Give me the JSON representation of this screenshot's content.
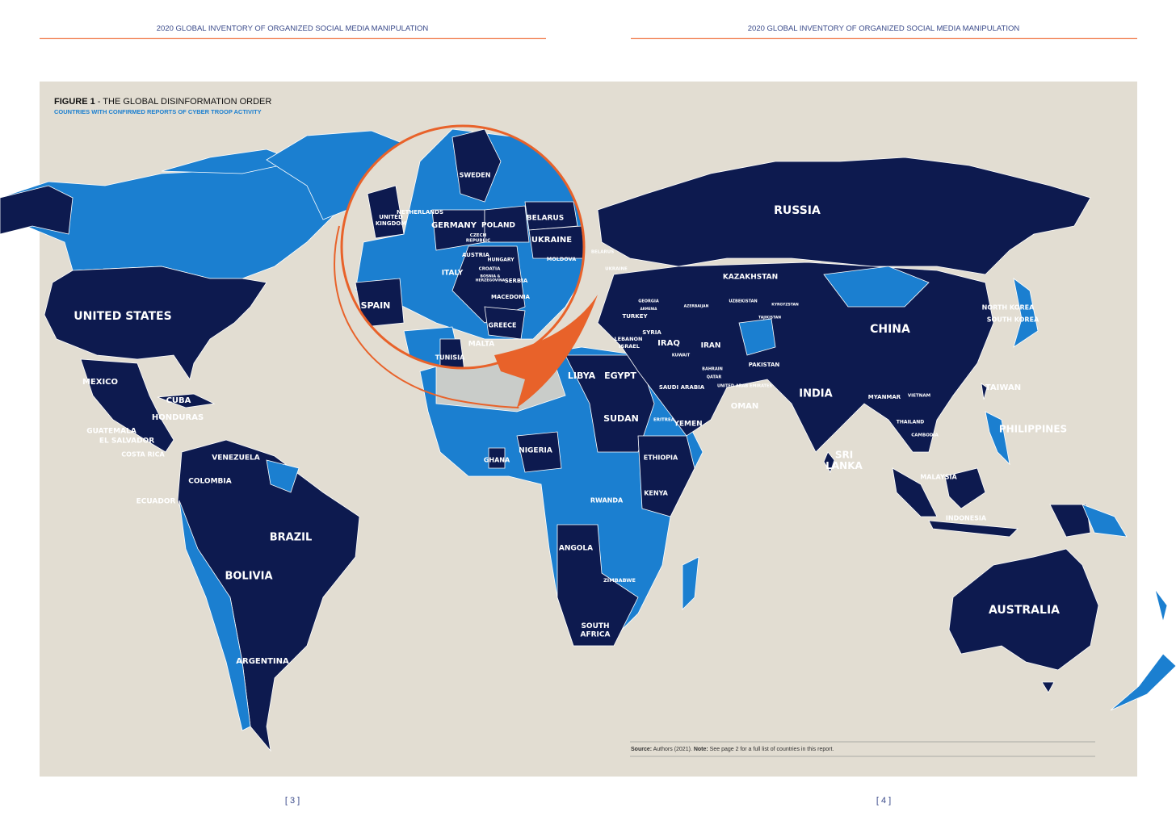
{
  "header": {
    "left": "2020 GLOBAL INVENTORY OF ORGANIZED SOCIAL MEDIA MANIPULATION",
    "right": "2020 GLOBAL INVENTORY OF ORGANIZED SOCIAL MEDIA MANIPULATION"
  },
  "figure": {
    "title_bold": "FIGURE 1",
    "title_rest": " - THE GLOBAL DISINFORMATION ORDER",
    "subtitle": "COUNTRIES WITH CONFIRMED REPORTS OF CYBER TROOP ACTIVITY"
  },
  "labels": [
    "RUSSIA",
    "UNITED STATES",
    "CHINA",
    "KAZAKHSTAN",
    "INDIA",
    "AUSTRALIA",
    "BRAZIL",
    "BOLIVIA",
    "ARGENTINA",
    "MEXICO",
    "CUBA",
    "HONDURAS",
    "GUATEMALA",
    "EL SALVADOR",
    "COSTA RICA",
    "VENEZUELA",
    "COLOMBIA",
    "ECUADOR",
    "SWEDEN",
    [
      "UNITED",
      "KINGDOM"
    ],
    "NETHERLANDS",
    "GERMANY",
    "POLAND",
    "BELARUS",
    "UKRAINE",
    [
      "CZECH",
      "REPUBLIC"
    ],
    "AUSTRIA",
    "HUNGARY",
    "MOLDOVA",
    "CROATIA",
    "ITALY",
    "SERBIA",
    [
      "BOSNIA &",
      "HERZEGOVINA"
    ],
    "MACEDONIA",
    "SPAIN",
    "GREECE",
    "MALTA",
    "TUNISIA",
    "BELARUS",
    "UKRAINE",
    "GEORGIA",
    "TURKEY",
    "ARMENIA",
    "AZERBAIJAN",
    "UZBEKISTAN",
    "KYRGYZSTAN",
    "TAJIKISTAN",
    "SYRIA",
    "LEBANON",
    "ISRAEL",
    "IRAQ",
    "IRAN",
    "KUWAIT",
    "BAHRAIN",
    "QATAR",
    "UNITED ARAB EMIRATES",
    "PAKISTAN",
    "SAUDI ARABIA",
    "OMAN",
    "YEMEN",
    "ERITREA",
    "LIBYA",
    "EGYPT",
    "SUDAN",
    "ETHIOPIA",
    "NIGERIA",
    "GHANA",
    "KENYA",
    "RWANDA",
    "ANGOLA",
    "ZIMBABWE",
    [
      "SOUTH",
      "AFRICA"
    ],
    "NORTH KOREA",
    "SOUTH KOREA",
    "TAIWAN",
    "PHILIPPINES",
    "MYANMAR",
    "VIETNAM",
    "THAILAND",
    "CAMBODIA",
    "MALAYSIA",
    "INDONESIA",
    [
      "SRI",
      "LANKA"
    ]
  ],
  "source": {
    "source_label": "Source:",
    "source_text": " Authors (2021). ",
    "note_label": "Note:",
    "note_text": " See page 2 for a full list of countries in this report."
  },
  "pages": {
    "left": "[ 3 ]",
    "right": "[ 4 ]"
  }
}
